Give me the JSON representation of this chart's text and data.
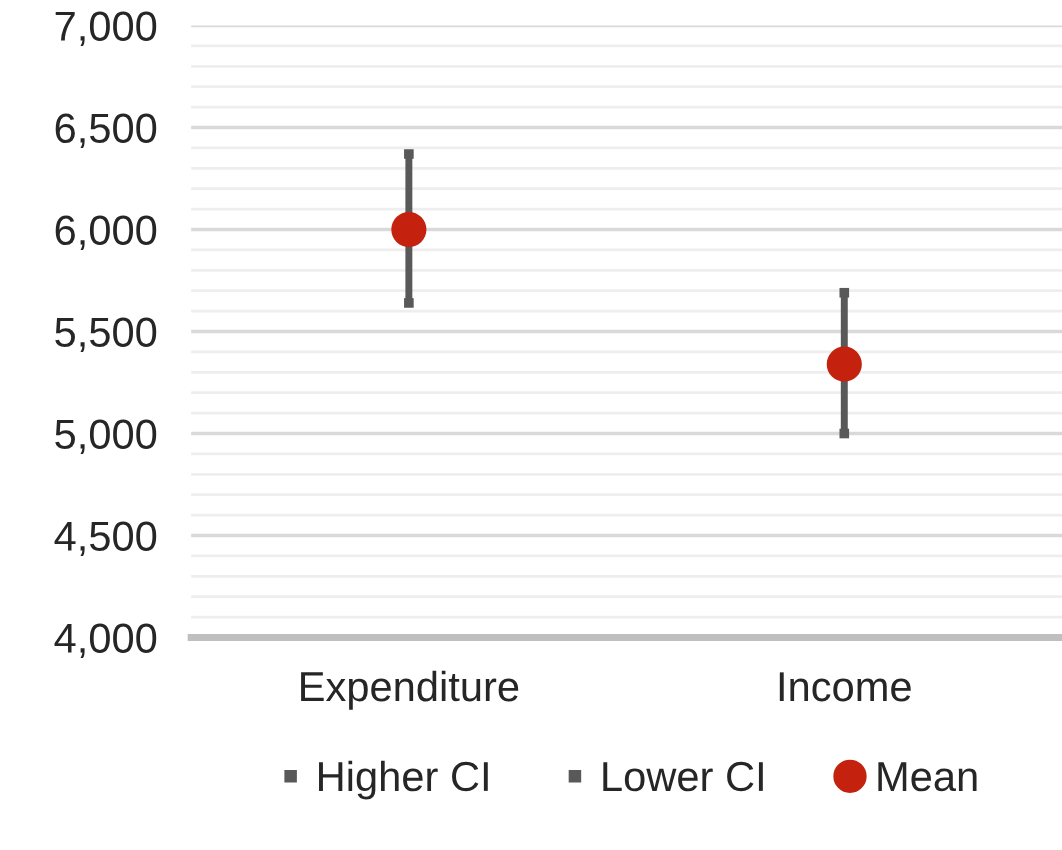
{
  "chart_data": {
    "type": "scatter",
    "categories": [
      "Expenditure",
      "Income"
    ],
    "series": [
      {
        "name": "Higher CI",
        "marker": "square",
        "color": "#595959",
        "values": [
          6370,
          5690
        ]
      },
      {
        "name": "Lower CI",
        "marker": "square",
        "color": "#595959",
        "values": [
          5640,
          5000
        ]
      },
      {
        "name": "Mean",
        "marker": "circle",
        "color": "#c4220f",
        "values": [
          6000,
          5340
        ]
      }
    ],
    "ylim": [
      4000,
      7000
    ],
    "yticks": [
      {
        "value": 4000,
        "label": "4,000"
      },
      {
        "value": 4500,
        "label": "4,500"
      },
      {
        "value": 5000,
        "label": "5,000"
      },
      {
        "value": 5500,
        "label": "5,500"
      },
      {
        "value": 6000,
        "label": "6,000"
      },
      {
        "value": 6500,
        "label": "6,500"
      },
      {
        "value": 7000,
        "label": "7,000"
      }
    ],
    "grid": "y",
    "legend": "bottom"
  }
}
